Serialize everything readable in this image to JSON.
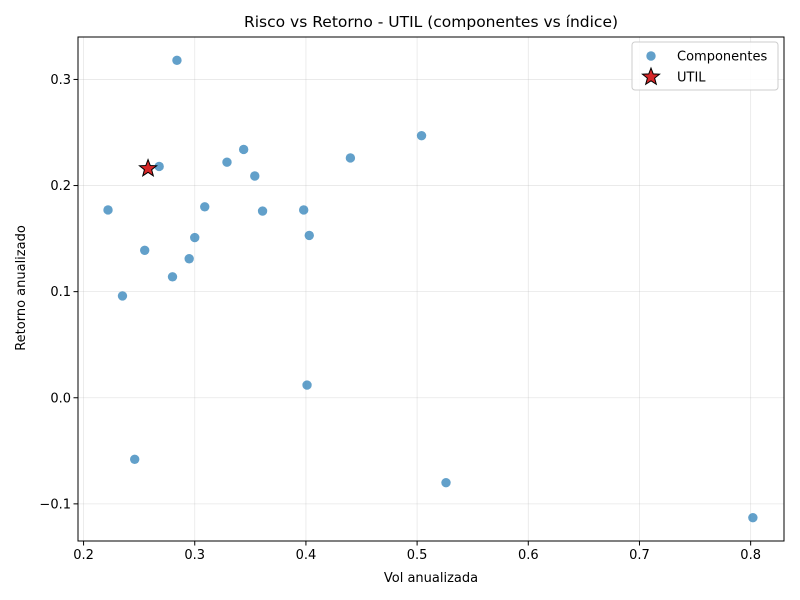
{
  "chart_data": {
    "type": "scatter",
    "title": "Risco vs Retorno - UTIL (componentes vs índice)",
    "xlabel": "Vol anualizada",
    "ylabel": "Retorno anualizado",
    "xlim": [
      0.195,
      0.83
    ],
    "ylim": [
      -0.135,
      0.34
    ],
    "xticks": [
      0.2,
      0.3,
      0.4,
      0.5,
      0.6,
      0.7,
      0.8
    ],
    "xtick_labels": [
      "0.2",
      "0.3",
      "0.4",
      "0.5",
      "0.6",
      "0.7",
      "0.8"
    ],
    "yticks": [
      -0.1,
      0.0,
      0.1,
      0.2,
      0.3
    ],
    "ytick_labels": [
      "−0.1",
      "0.0",
      "0.1",
      "0.2",
      "0.3"
    ],
    "grid": true,
    "legend_position": "top-right",
    "series": [
      {
        "name": "Componentes",
        "marker": "circle",
        "color": "#1f77b4",
        "points": [
          {
            "x": 0.284,
            "y": 0.318
          },
          {
            "x": 0.504,
            "y": 0.247
          },
          {
            "x": 0.344,
            "y": 0.234
          },
          {
            "x": 0.44,
            "y": 0.226
          },
          {
            "x": 0.329,
            "y": 0.222
          },
          {
            "x": 0.268,
            "y": 0.218
          },
          {
            "x": 0.354,
            "y": 0.209
          },
          {
            "x": 0.309,
            "y": 0.18
          },
          {
            "x": 0.222,
            "y": 0.177
          },
          {
            "x": 0.361,
            "y": 0.176
          },
          {
            "x": 0.398,
            "y": 0.177
          },
          {
            "x": 0.403,
            "y": 0.153
          },
          {
            "x": 0.3,
            "y": 0.151
          },
          {
            "x": 0.255,
            "y": 0.139
          },
          {
            "x": 0.295,
            "y": 0.131
          },
          {
            "x": 0.28,
            "y": 0.114
          },
          {
            "x": 0.235,
            "y": 0.096
          },
          {
            "x": 0.401,
            "y": 0.012
          },
          {
            "x": 0.246,
            "y": -0.058
          },
          {
            "x": 0.526,
            "y": -0.08
          },
          {
            "x": 0.802,
            "y": -0.113
          }
        ]
      },
      {
        "name": "UTIL",
        "marker": "star",
        "color": "#d62728",
        "points": [
          {
            "x": 0.258,
            "y": 0.216
          }
        ]
      }
    ]
  }
}
